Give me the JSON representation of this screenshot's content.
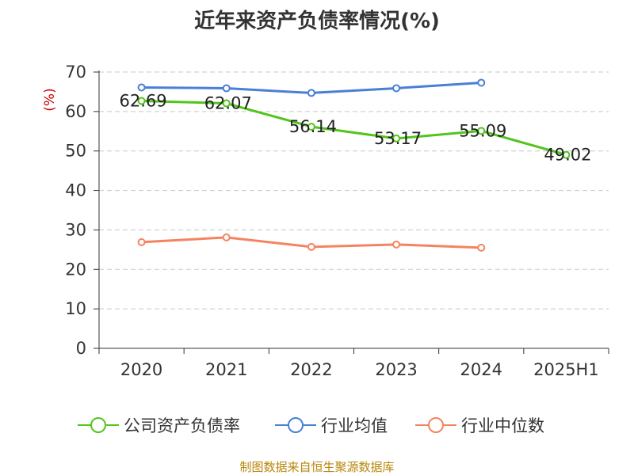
{
  "chart_data": {
    "type": "line",
    "title": "近年来资产负债率情况(%)",
    "ylabel": "(%)",
    "xlabel": "",
    "categories": [
      "2020",
      "2021",
      "2022",
      "2023",
      "2024",
      "2025H1"
    ],
    "ylim": [
      0,
      70
    ],
    "yticks": [
      0,
      10,
      20,
      30,
      40,
      50,
      60,
      70
    ],
    "grid": true,
    "legend_position": "bottom",
    "series": [
      {
        "name": "公司资产负债率",
        "color": "#52c41a",
        "values": [
          62.69,
          62.07,
          56.14,
          53.17,
          55.09,
          49.02
        ],
        "labels": [
          "62.69",
          "62.07",
          "56.14",
          "53.17",
          "55.09",
          "49.02"
        ]
      },
      {
        "name": "行业均值",
        "color": "#4a7fd6",
        "values": [
          66.1,
          65.9,
          64.7,
          65.9,
          67.3,
          null
        ]
      },
      {
        "name": "行业中位数",
        "color": "#f4845f",
        "values": [
          26.9,
          28.1,
          25.7,
          26.3,
          25.5,
          null
        ]
      }
    ]
  },
  "source_note": "制图数据来自恒生聚源数据库"
}
